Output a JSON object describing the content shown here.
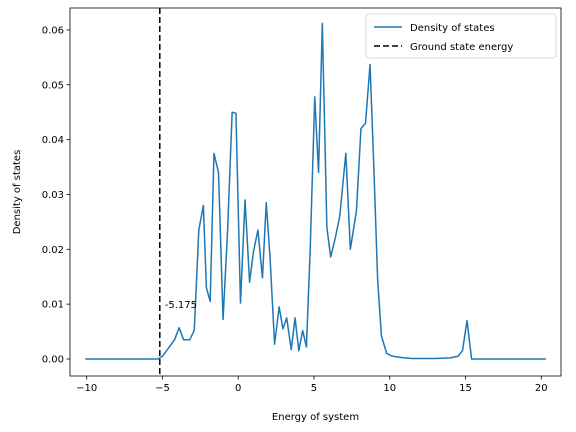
{
  "chart_data": {
    "type": "line",
    "title": "",
    "xlabel": "Energy of system",
    "ylabel": "Density of states",
    "xlim": [
      -11.1,
      21.3
    ],
    "ylim": [
      -0.0031,
      0.064
    ],
    "xticks": [
      -10,
      -5,
      0,
      5,
      10,
      15,
      20
    ],
    "yticks": [
      0.0,
      0.01,
      0.02,
      0.03,
      0.04,
      0.05,
      0.06
    ],
    "xtick_labels": [
      "−10",
      "−5",
      "0",
      "5",
      "10",
      "15",
      "20"
    ],
    "ytick_labels": [
      "0.00",
      "0.01",
      "0.02",
      "0.03",
      "0.04",
      "0.05",
      "0.06"
    ],
    "grid": false,
    "legend_position": "top-right",
    "series": [
      {
        "name": "Density of states",
        "color": "#1f77b4",
        "style": "solid",
        "x": [
          -10.1,
          -9.0,
          -8.0,
          -7.0,
          -6.0,
          -5.3,
          -5.0,
          -4.6,
          -4.2,
          -3.9,
          -3.6,
          -3.2,
          -2.9,
          -2.6,
          -2.3,
          -2.1,
          -1.85,
          -1.6,
          -1.3,
          -1.0,
          -0.7,
          -0.4,
          -0.15,
          0.15,
          0.45,
          0.75,
          1.0,
          1.3,
          1.6,
          1.85,
          2.1,
          2.4,
          2.7,
          2.95,
          3.2,
          3.5,
          3.75,
          4.0,
          4.25,
          4.5,
          4.75,
          5.05,
          5.3,
          5.55,
          5.85,
          6.1,
          6.4,
          6.7,
          7.1,
          7.4,
          7.8,
          8.1,
          8.4,
          8.7,
          8.95,
          9.2,
          9.45,
          9.8,
          10.1,
          10.4,
          10.7,
          11.0,
          11.5,
          12.0,
          13.0,
          14.0,
          14.5,
          14.8,
          15.1,
          15.4,
          16.0,
          17.0,
          18.0,
          19.0,
          20.3
        ],
        "y": [
          0.0,
          0.0,
          0.0,
          0.0,
          0.0,
          0.0,
          0.0005,
          0.002,
          0.0035,
          0.0057,
          0.0035,
          0.0035,
          0.0052,
          0.0235,
          0.028,
          0.013,
          0.0105,
          0.0375,
          0.034,
          0.0072,
          0.0235,
          0.045,
          0.0448,
          0.0102,
          0.029,
          0.014,
          0.0195,
          0.0235,
          0.0148,
          0.0285,
          0.0185,
          0.0027,
          0.0095,
          0.0055,
          0.0075,
          0.0017,
          0.0075,
          0.0015,
          0.0052,
          0.0022,
          0.02,
          0.0478,
          0.034,
          0.0612,
          0.024,
          0.0186,
          0.022,
          0.026,
          0.0375,
          0.02,
          0.027,
          0.042,
          0.043,
          0.0537,
          0.035,
          0.0145,
          0.0042,
          0.001,
          0.0006,
          0.0004,
          0.0003,
          0.0002,
          0.0001,
          0.0001,
          0.0001,
          0.0002,
          0.0005,
          0.0015,
          0.007,
          0.0,
          0.0,
          0.0,
          0.0,
          0.0,
          0.0
        ]
      },
      {
        "name": "Ground state energy",
        "color": "#000000",
        "style": "dashed",
        "type": "vline",
        "x_value": -5.175
      }
    ],
    "annotations": [
      {
        "text": "-5.175",
        "x": -5.175,
        "y": 0.01
      }
    ]
  }
}
